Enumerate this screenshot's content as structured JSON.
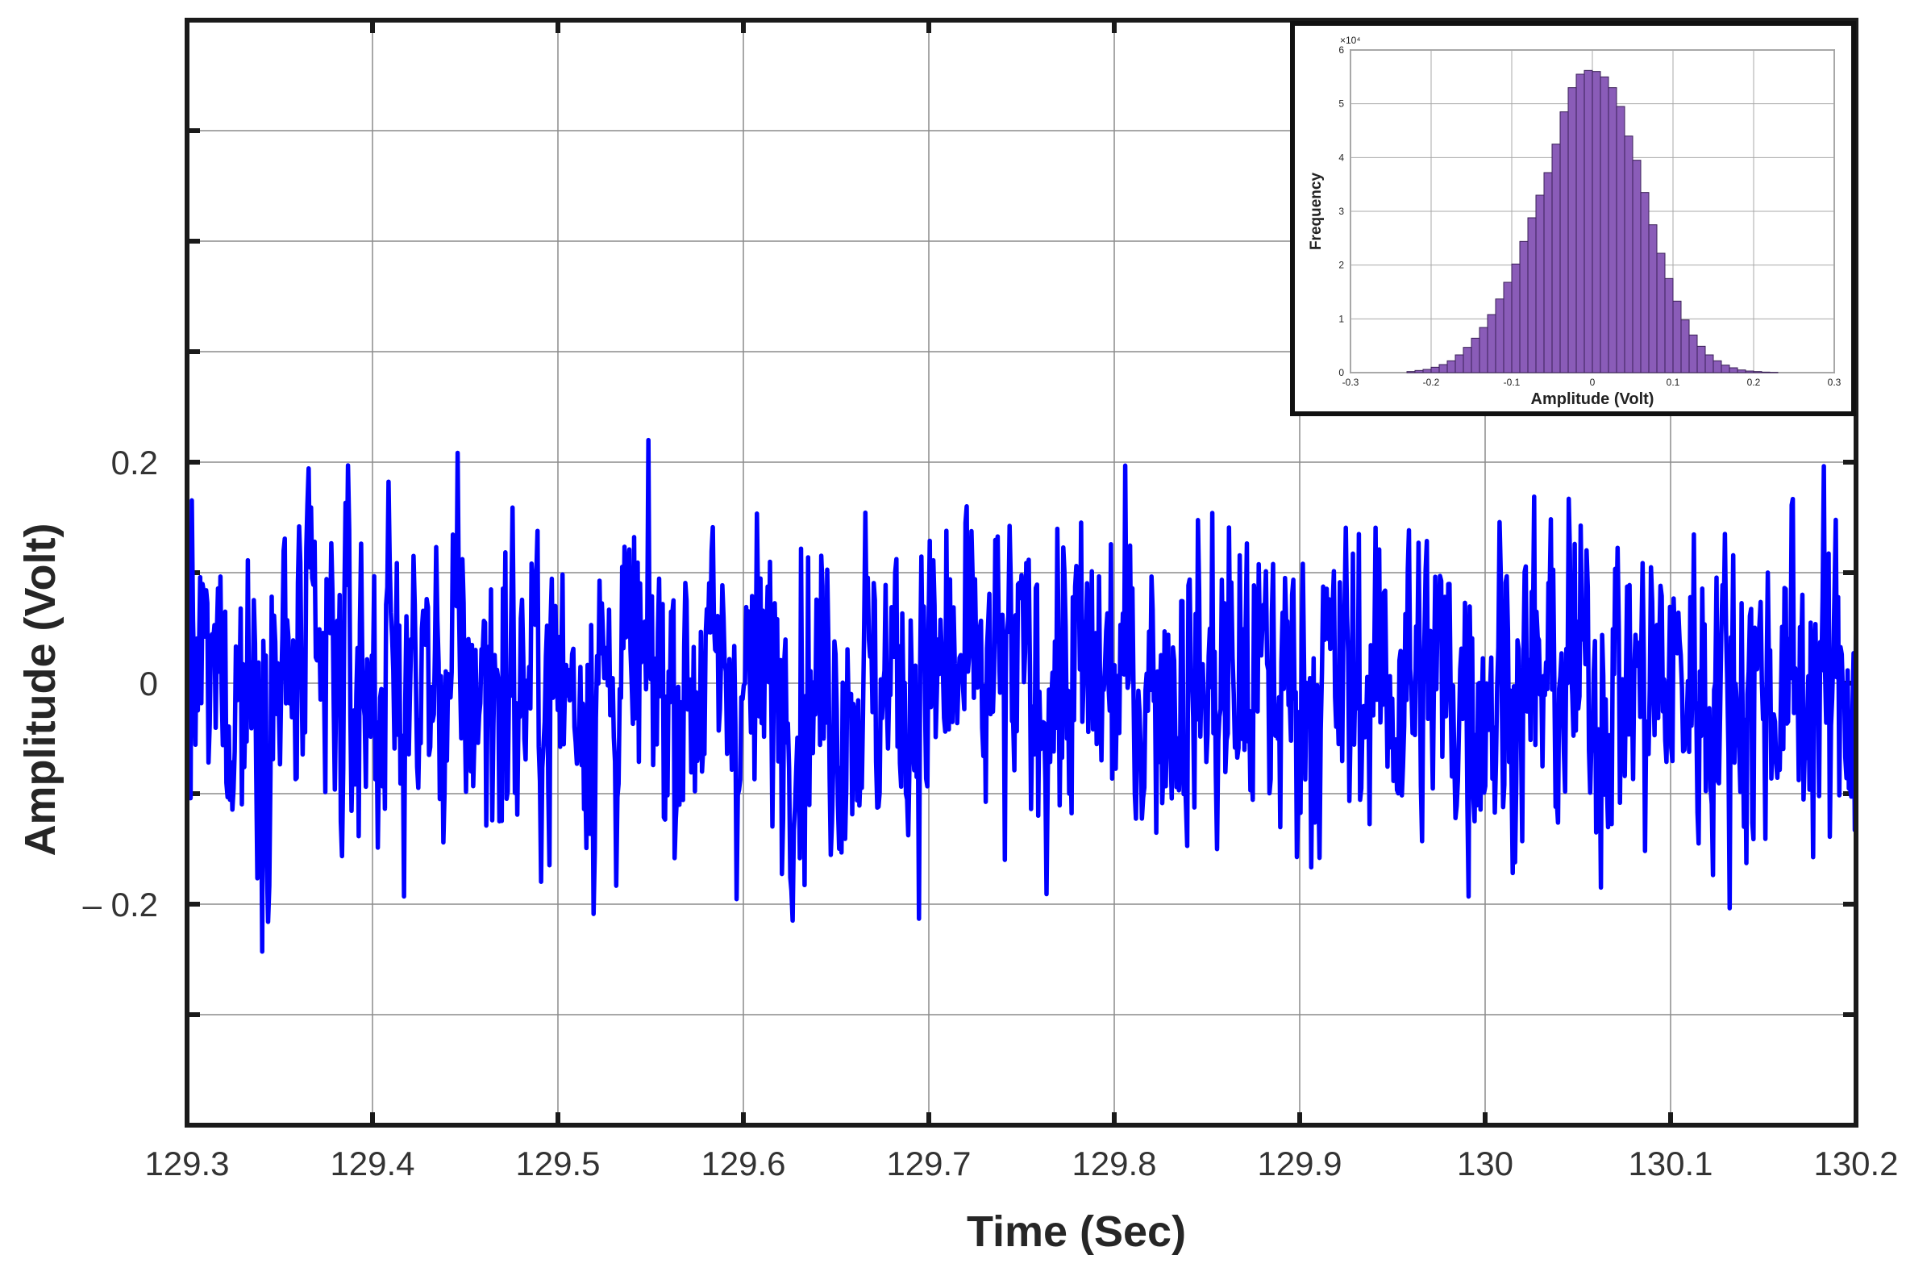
{
  "chart_data": [
    {
      "type": "line",
      "xlabel": "Time (Sec)",
      "ylabel": "Amplitude (Volt)",
      "xlim": [
        129.3,
        130.2
      ],
      "ylim": [
        -0.4,
        0.6
      ],
      "xticks": [
        129.3,
        129.4,
        129.5,
        129.6,
        129.7,
        129.8,
        129.9,
        130,
        130.1,
        130.2
      ],
      "xtick_labels": [
        "129.3",
        "129.4",
        "129.5",
        "129.6",
        "129.7",
        "129.8",
        "129.9",
        "130",
        "130.1",
        "130.2"
      ],
      "yticks": [
        -0.3,
        -0.2,
        -0.1,
        0,
        0.1,
        0.2,
        0.3,
        0.4,
        0.5
      ],
      "ytick_labels": [
        {
          "value": 0.2,
          "label": "0.2"
        },
        {
          "value": 0,
          "label": "0"
        },
        {
          "value": -0.2,
          "label": "– 0.2"
        }
      ],
      "grid": true,
      "line_color": "#0000ff",
      "series": [
        {
          "noise": {
            "distribution": "gaussian",
            "mean": 0,
            "std": 0.075,
            "min": -0.27,
            "max": 0.22,
            "start_time": 129.3,
            "end_time": 130.2
          }
        }
      ]
    },
    {
      "type": "bar",
      "xlabel": "Amplitude (Volt)",
      "ylabel": "Frequency",
      "ylabel_multiplier": "×10⁴",
      "xlim": [
        -0.3,
        0.3
      ],
      "ylim": [
        0,
        6
      ],
      "xtick_labels": [
        "-0.3",
        "-0.2",
        "-0.1",
        "0",
        "0.1",
        "0.2",
        "0.3"
      ],
      "ytick_labels": [
        "0",
        "1",
        "2",
        "3",
        "4",
        "5",
        "6"
      ],
      "grid": true,
      "bar_color": "#8a5cb8",
      "bin_width": 0.01,
      "bin_centers": [
        -0.225,
        -0.215,
        -0.205,
        -0.195,
        -0.185,
        -0.175,
        -0.165,
        -0.155,
        -0.145,
        -0.135,
        -0.125,
        -0.115,
        -0.105,
        -0.095,
        -0.085,
        -0.075,
        -0.065,
        -0.055,
        -0.045,
        -0.035,
        -0.025,
        -0.015,
        -0.005,
        0.005,
        0.015,
        0.025,
        0.035,
        0.045,
        0.055,
        0.065,
        0.075,
        0.085,
        0.095,
        0.105,
        0.115,
        0.125,
        0.135,
        0.145,
        0.155,
        0.165,
        0.175,
        0.185,
        0.195,
        0.205,
        0.215,
        0.225
      ],
      "values": [
        0.02,
        0.04,
        0.06,
        0.1,
        0.15,
        0.22,
        0.33,
        0.47,
        0.64,
        0.84,
        1.08,
        1.37,
        1.68,
        2.02,
        2.44,
        2.88,
        3.3,
        3.72,
        4.25,
        4.85,
        5.3,
        5.55,
        5.62,
        5.6,
        5.5,
        5.3,
        4.95,
        4.4,
        3.95,
        3.35,
        2.75,
        2.22,
        1.75,
        1.33,
        0.98,
        0.7,
        0.49,
        0.33,
        0.22,
        0.14,
        0.09,
        0.05,
        0.03,
        0.02,
        0.01,
        0.005
      ]
    }
  ]
}
